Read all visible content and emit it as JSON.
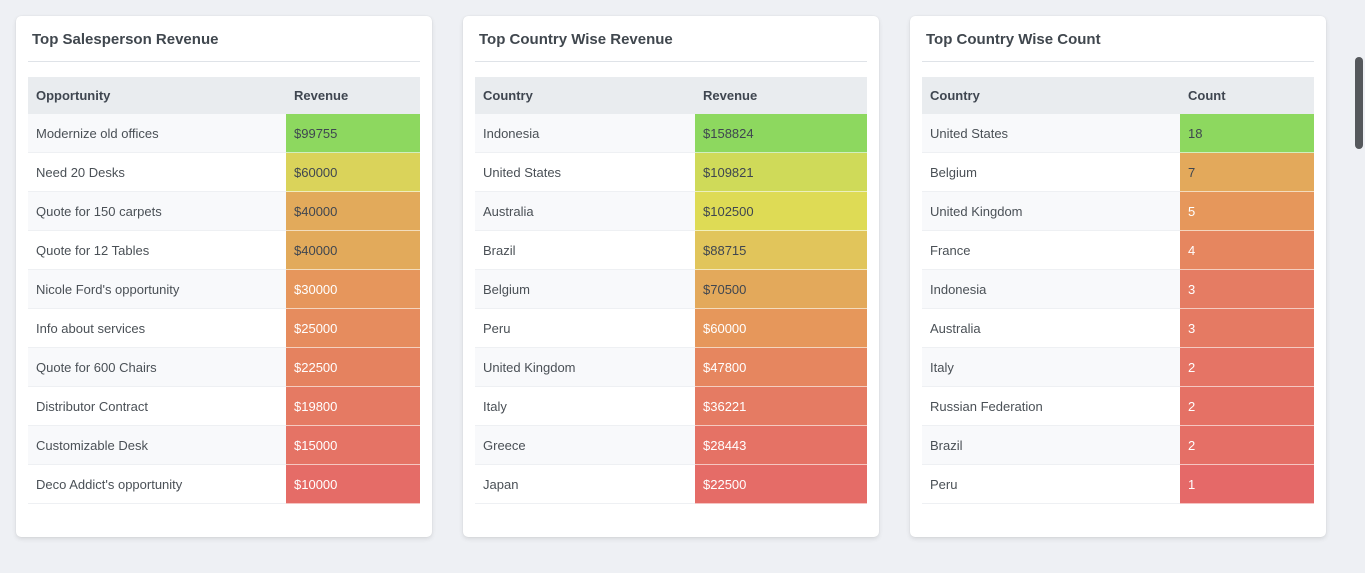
{
  "page": {
    "background": "#eef0f4",
    "dark_value_text": "#3f4650",
    "light_value_text": "#ffffff"
  },
  "cards": [
    {
      "title": "Top Salesperson Revenue",
      "columns": [
        "Opportunity",
        "Revenue"
      ],
      "rows": [
        {
          "label": "Modernize old offices",
          "value": "$99755",
          "color": "#8dd85f",
          "text": "#3f4650"
        },
        {
          "label": "Need 20 Desks",
          "value": "$60000",
          "color": "#dad35a",
          "text": "#3f4650"
        },
        {
          "label": "Quote for 150 carpets",
          "value": "$40000",
          "color": "#e2aa5b",
          "text": "#3f4650"
        },
        {
          "label": "Quote for 12 Tables",
          "value": "$40000",
          "color": "#e2aa5b",
          "text": "#3f4650"
        },
        {
          "label": "Nicole Ford's opportunity",
          "value": "$30000",
          "color": "#e6965c",
          "text": "#ffffff"
        },
        {
          "label": "Info about services",
          "value": "$25000",
          "color": "#e68c5e",
          "text": "#ffffff"
        },
        {
          "label": "Quote for 600 Chairs",
          "value": "$22500",
          "color": "#e5825f",
          "text": "#ffffff"
        },
        {
          "label": "Distributor Contract",
          "value": "$19800",
          "color": "#e57a63",
          "text": "#ffffff"
        },
        {
          "label": "Customizable Desk",
          "value": "$15000",
          "color": "#e57365",
          "text": "#ffffff"
        },
        {
          "label": "Deco Addict's opportunity",
          "value": "$10000",
          "color": "#e56c67",
          "text": "#ffffff"
        }
      ]
    },
    {
      "title": "Top Country Wise Revenue",
      "columns": [
        "Country",
        "Revenue"
      ],
      "rows": [
        {
          "label": "Indonesia",
          "value": "$158824",
          "color": "#8dd85f",
          "text": "#3f4650"
        },
        {
          "label": "United States",
          "value": "$109821",
          "color": "#cfda59",
          "text": "#3f4650"
        },
        {
          "label": "Australia",
          "value": "$102500",
          "color": "#dedb55",
          "text": "#3f4650"
        },
        {
          "label": "Brazil",
          "value": "$88715",
          "color": "#e1c55b",
          "text": "#3f4650"
        },
        {
          "label": "Belgium",
          "value": "$70500",
          "color": "#e3a95b",
          "text": "#3f4650"
        },
        {
          "label": "Peru",
          "value": "$60000",
          "color": "#e6975b",
          "text": "#ffffff"
        },
        {
          "label": "United Kingdom",
          "value": "$47800",
          "color": "#e6865f",
          "text": "#ffffff"
        },
        {
          "label": "Italy",
          "value": "$36221",
          "color": "#e57b63",
          "text": "#ffffff"
        },
        {
          "label": "Greece",
          "value": "$28443",
          "color": "#e57265",
          "text": "#ffffff"
        },
        {
          "label": "Japan",
          "value": "$22500",
          "color": "#e56c67",
          "text": "#ffffff"
        }
      ]
    },
    {
      "title": "Top Country Wise Count",
      "columns": [
        "Country",
        "Count"
      ],
      "rows": [
        {
          "label": "United States",
          "value": "18",
          "color": "#8dd85f",
          "text": "#3f4650"
        },
        {
          "label": "Belgium",
          "value": "7",
          "color": "#e3a95b",
          "text": "#3f4650"
        },
        {
          "label": "United Kingdom",
          "value": "5",
          "color": "#e6975b",
          "text": "#ffffff"
        },
        {
          "label": "France",
          "value": "4",
          "color": "#e6865f",
          "text": "#ffffff"
        },
        {
          "label": "Indonesia",
          "value": "3",
          "color": "#e57c63",
          "text": "#ffffff"
        },
        {
          "label": "Australia",
          "value": "3",
          "color": "#e57a63",
          "text": "#ffffff"
        },
        {
          "label": "Italy",
          "value": "2",
          "color": "#e57465",
          "text": "#ffffff"
        },
        {
          "label": "Russian Federation",
          "value": "2",
          "color": "#e57165",
          "text": "#ffffff"
        },
        {
          "label": "Brazil",
          "value": "2",
          "color": "#e56f66",
          "text": "#ffffff"
        },
        {
          "label": "Peru",
          "value": "1",
          "color": "#e56968",
          "text": "#ffffff"
        }
      ]
    }
  ],
  "scrollbar": {
    "visible": true
  }
}
